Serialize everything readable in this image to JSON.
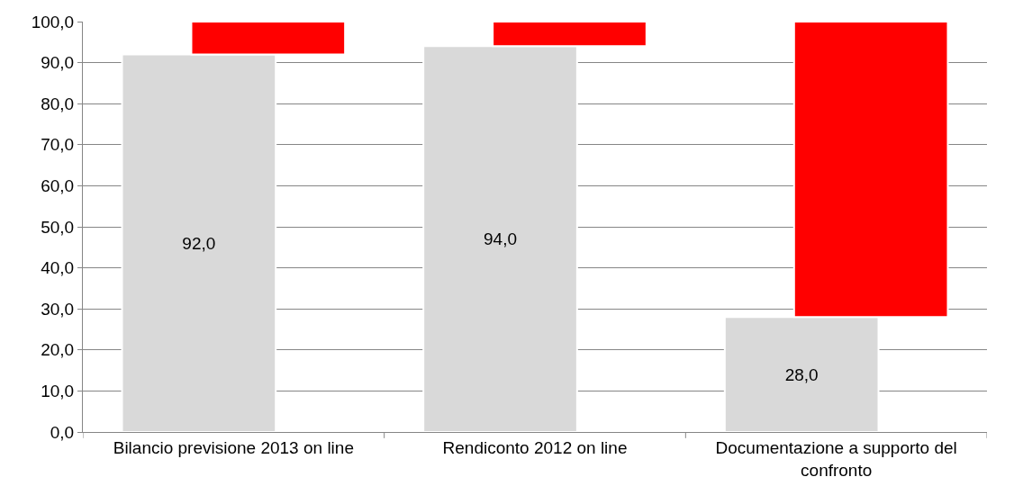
{
  "chart_data": {
    "type": "bar",
    "categories": [
      "Bilancio previsione 2013 on line",
      "Rendiconto 2012 on line",
      "Documentazione a supporto del confronto"
    ],
    "series": [
      {
        "color": "#d9d9d9",
        "values": [
          92.0,
          94.0,
          28.0
        ],
        "value_labels": [
          "92,0",
          "94,0",
          "28,0"
        ]
      },
      {
        "color": "#ff0000",
        "values": [
          8.0,
          6.0,
          72.0
        ],
        "base": [
          92.0,
          94.0,
          28.0
        ]
      }
    ],
    "ylim": [
      0,
      100
    ],
    "yticks": [
      {
        "value": 0,
        "label": "0,0"
      },
      {
        "value": 10,
        "label": "10,0"
      },
      {
        "value": 20,
        "label": "20,0"
      },
      {
        "value": 30,
        "label": "30,0"
      },
      {
        "value": 40,
        "label": "40,0"
      },
      {
        "value": 50,
        "label": "50,0"
      },
      {
        "value": 60,
        "label": "60,0"
      },
      {
        "value": 70,
        "label": "70,0"
      },
      {
        "value": 80,
        "label": "80,0"
      },
      {
        "value": 90,
        "label": "90,0"
      },
      {
        "value": 100,
        "label": "100,0"
      }
    ],
    "grid": "y"
  }
}
